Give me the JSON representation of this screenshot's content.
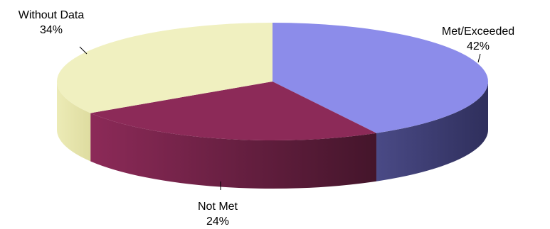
{
  "chart_data": {
    "type": "pie",
    "style": "3d",
    "title": "",
    "slices": [
      {
        "label": "Met/Exceeded",
        "percent_label": "42%",
        "value": 42,
        "color": "#8c8cea"
      },
      {
        "label": "Not Met",
        "percent_label": "24%",
        "value": 24,
        "color": "#8c2a58"
      },
      {
        "label": "Without Data",
        "percent_label": "34%",
        "value": 34,
        "color": "#f0f0c0"
      }
    ],
    "legend": "none"
  }
}
